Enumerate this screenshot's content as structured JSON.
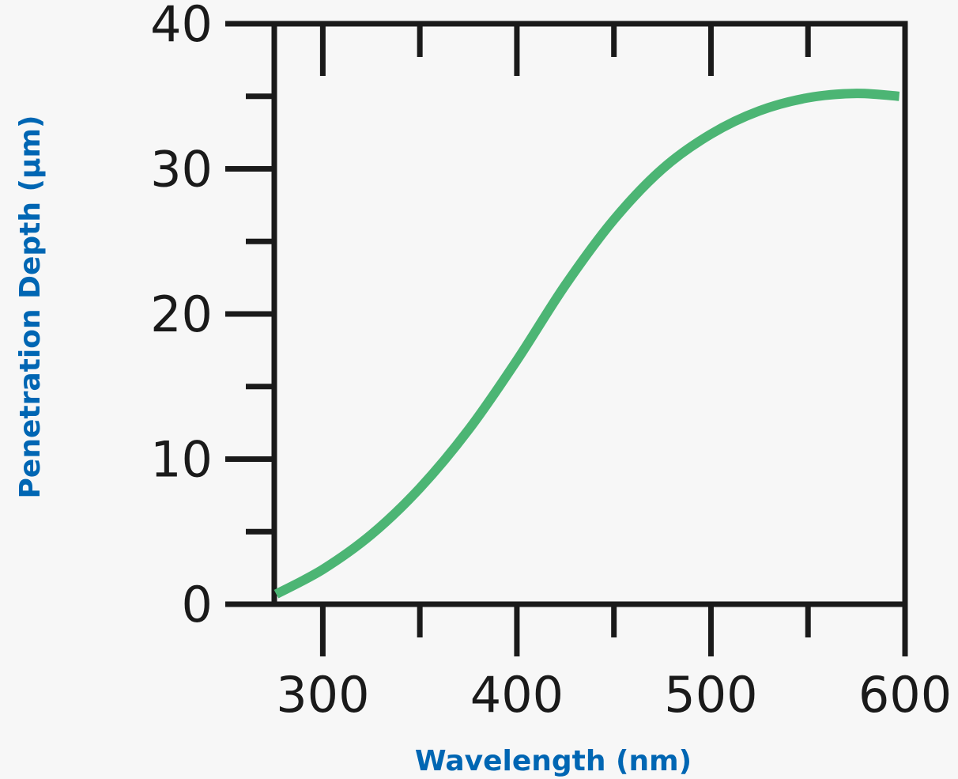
{
  "chart_data": {
    "type": "line",
    "title": "",
    "xlabel": "Wavelength (nm)",
    "ylabel": "Penetration Depth (μm)",
    "xlim": [
      275,
      600
    ],
    "ylim": [
      0,
      40
    ],
    "x_major_ticks": [
      300,
      400,
      500,
      600
    ],
    "x_minor_ticks": [
      350,
      450,
      550
    ],
    "x_tick_labels": [
      "300",
      "400",
      "500",
      "600"
    ],
    "y_major_ticks": [
      0,
      10,
      20,
      30,
      40
    ],
    "y_minor_ticks": [
      5,
      15,
      25,
      35
    ],
    "y_tick_labels": [
      "0",
      "10",
      "20",
      "30",
      "40"
    ],
    "grid": false,
    "series": [
      {
        "color": "#4cb574",
        "x": [
          276,
          300,
          325,
          350,
          375,
          400,
          425,
          450,
          475,
          500,
          525,
          550,
          575,
          597
        ],
        "y": [
          0.7,
          2.4,
          4.8,
          8.0,
          12.0,
          16.8,
          22.0,
          26.5,
          30.0,
          32.4,
          34.0,
          34.9,
          35.2,
          35.0
        ]
      }
    ]
  }
}
